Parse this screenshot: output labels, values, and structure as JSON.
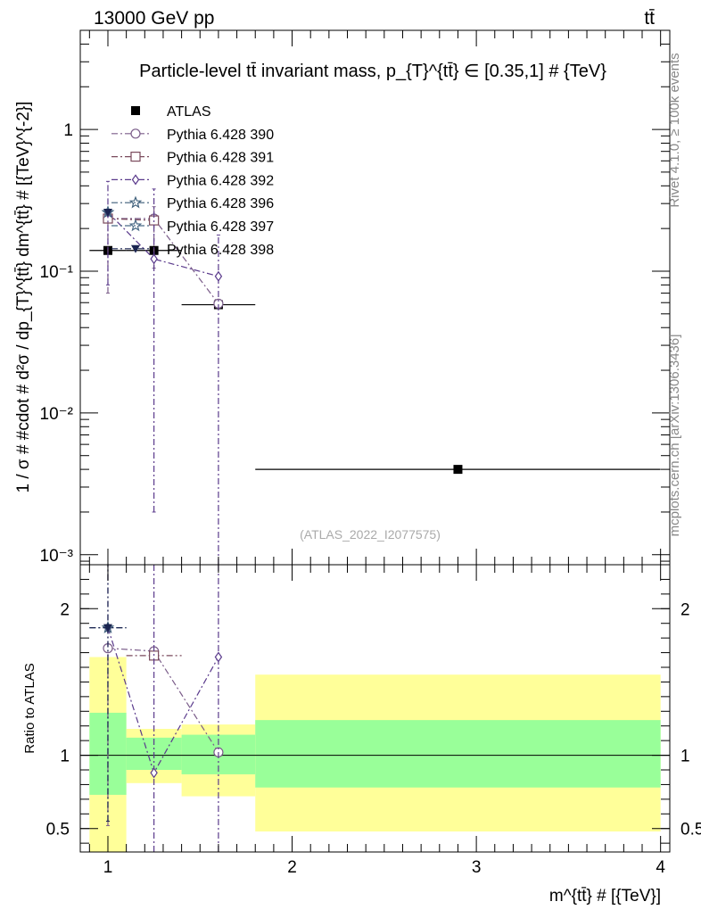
{
  "header": {
    "energy_label": "13000 GeV pp",
    "process_label": "tt̄"
  },
  "side": {
    "rivet_label": "Rivet 4.1.0, ≥ 100k events",
    "mcplots_label": "mcplots.cern.ch [arXiv:1306.3436]"
  },
  "chart_data": [
    {
      "type": "scatter",
      "panel": "main",
      "title": "Particle-level tt̄ invariant mass, p_{T}^{tt̄} ∈ [0.35,1] # {TeV}",
      "ylabel": "1 / σ # #cdot # d²σ / dp_{T}^{tt̄} dm^{tt̄} # [{TeV}^{-2}]",
      "watermark": "(ATLAS_2022_I2077575)",
      "xlim": [
        0.85,
        4.05
      ],
      "ylim": [
        0.00085,
        5.0
      ],
      "yscale": "log",
      "y_ticks": [
        {
          "value": 1,
          "label": "1"
        },
        {
          "value": 0.1,
          "label": "10⁻¹"
        },
        {
          "value": 0.01,
          "label": "10⁻²"
        },
        {
          "value": 0.001,
          "label": "10⁻³"
        }
      ],
      "legend_position": "top-left",
      "series": [
        {
          "name": "ATLAS",
          "color": "#000000",
          "marker": "square-filled",
          "line": "none",
          "points": [
            {
              "x": 1.0,
              "xerr": [
                0.1,
                0.1
              ],
              "y": 0.14,
              "yerr": [
                0.0,
                0.0
              ]
            },
            {
              "x": 1.25,
              "xerr": [
                0.15,
                0.15
              ],
              "y": 0.14,
              "yerr": [
                0.0,
                0.0
              ]
            },
            {
              "x": 1.6,
              "xerr": [
                0.2,
                0.2
              ],
              "y": 0.058,
              "yerr": [
                0.0,
                0.0
              ]
            },
            {
              "x": 2.9,
              "xerr": [
                1.1,
                1.1
              ],
              "y": 0.004,
              "yerr": [
                0.0,
                0.0
              ]
            }
          ]
        },
        {
          "name": "Pythia 6.428 390",
          "color": "#7b5d8a",
          "marker": "circle-open",
          "line": "dashdot",
          "points": [
            {
              "x": 1.0,
              "y": 0.235,
              "yerr": [
                0.165,
                0.0
              ]
            },
            {
              "x": 1.25,
              "y": 0.235,
              "yerr": [
                0.13,
                0.05
              ]
            },
            {
              "x": 1.6,
              "y": 0.059,
              "yerr": [
                0.0,
                0.0
              ]
            }
          ]
        },
        {
          "name": "Pythia 6.428 391",
          "color": "#7a4a5c",
          "marker": "square-open",
          "line": "dashdot",
          "points": [
            {
              "x": 1.0,
              "y": 0.235,
              "yerr": [
                0.0,
                0.0
              ]
            },
            {
              "x": 1.25,
              "y": 0.228,
              "yerr": [
                0.0,
                0.0
              ]
            }
          ]
        },
        {
          "name": "Pythia 6.428 392",
          "color": "#5a3a8c",
          "marker": "diamond-open",
          "line": "dashdot",
          "points": [
            {
              "x": 1.0,
              "y": 0.26,
              "yerr": [
                0.18,
                0.17
              ]
            },
            {
              "x": 1.25,
              "y": 0.122,
              "yerr": [
                0.12,
                0.258
              ]
            },
            {
              "x": 1.6,
              "y": 0.092,
              "yerr": [
                0.092,
                0.088
              ]
            }
          ]
        },
        {
          "name": "Pythia 6.428 396",
          "color": "#3e5f7a",
          "marker": "star-open",
          "line": "dashdot",
          "points": [
            {
              "x": 1.0,
              "y": 0.26,
              "yerr": [
                0.0,
                0.0
              ]
            }
          ]
        },
        {
          "name": "Pythia 6.428 397",
          "color": "#4a6a86",
          "marker": "star-open",
          "line": "dashdot",
          "points": [
            {
              "x": 1.0,
              "y": 0.26,
              "yerr": [
                0.0,
                0.0
              ]
            }
          ]
        },
        {
          "name": "Pythia 6.428 398",
          "color": "#1a2450",
          "marker": "triangle-down-filled",
          "line": "dashdot",
          "points": [
            {
              "x": 1.0,
              "y": 0.26,
              "yerr": [
                0.0,
                0.0
              ]
            }
          ]
        }
      ]
    },
    {
      "type": "scatter",
      "panel": "ratio",
      "ylabel": "Ratio to ATLAS",
      "xlabel": "m^{tt̄} # [{TeV}]",
      "xlim": [
        0.85,
        4.05
      ],
      "ylim": [
        0.34,
        2.3
      ],
      "y_ticks": [
        {
          "value": 0.5,
          "label": "0.5"
        },
        {
          "value": 1,
          "label": "1"
        },
        {
          "value": 2,
          "label": "2"
        }
      ],
      "x_ticks": [
        {
          "value": 1,
          "label": "1"
        },
        {
          "value": 2,
          "label": "2"
        },
        {
          "value": 3,
          "label": "3"
        },
        {
          "value": 4,
          "label": "4"
        }
      ],
      "uncertainty_bands": [
        {
          "x0": 0.9,
          "x1": 1.1,
          "inner": [
            0.73,
            1.29
          ],
          "outer": [
            0.34,
            1.67
          ]
        },
        {
          "x0": 1.1,
          "x1": 1.4,
          "inner": [
            0.9,
            1.12
          ],
          "outer": [
            0.81,
            1.18
          ]
        },
        {
          "x0": 1.4,
          "x1": 1.8,
          "inner": [
            0.87,
            1.14
          ],
          "outer": [
            0.72,
            1.21
          ]
        },
        {
          "x0": 1.8,
          "x1": 4.0,
          "inner": [
            0.78,
            1.24
          ],
          "outer": [
            0.48,
            1.55
          ]
        }
      ],
      "series": [
        {
          "name": "Pythia 6.428 390",
          "color": "#7b5d8a",
          "marker": "circle-open",
          "line": "dashdot",
          "points": [
            {
              "x": 1.0,
              "y": 1.73,
              "yerr": [
                1.21,
                0.0
              ]
            },
            {
              "x": 1.25,
              "y": 1.71,
              "yerr": [
                0.0,
                0.0
              ]
            },
            {
              "x": 1.6,
              "y": 1.02,
              "yerr": [
                0.0,
                0.0
              ]
            }
          ]
        },
        {
          "name": "Pythia 6.428 391",
          "color": "#7a4a5c",
          "marker": "square-open",
          "line": "dashdot",
          "points": [
            {
              "x": 1.25,
              "xerr": [
                0.15,
                0.15
              ],
              "y": 1.68,
              "yerr": [
                0.0,
                0.0
              ]
            }
          ]
        },
        {
          "name": "Pythia 6.428 392",
          "color": "#5a3a8c",
          "marker": "diamond-open",
          "line": "dashdot",
          "points": [
            {
              "x": 1.0,
              "y": 1.87,
              "yerr": [
                1.32,
                0.43
              ]
            },
            {
              "x": 1.25,
              "y": 0.88,
              "yerr": [
                0.54,
                1.42
              ]
            },
            {
              "x": 1.6,
              "y": 1.67,
              "yerr": [
                1.33,
                0.63
              ]
            }
          ]
        },
        {
          "name": "Pythia 6.428 396",
          "color": "#3e5f7a",
          "marker": "star-open",
          "line": "dashdot",
          "points": [
            {
              "x": 1.0,
              "xerr": [
                0.1,
                0.1
              ],
              "y": 1.87,
              "yerr": [
                0.0,
                0.0
              ]
            }
          ]
        },
        {
          "name": "Pythia 6.428 398",
          "color": "#1a2450",
          "marker": "triangle-down-filled",
          "line": "dashdot",
          "points": [
            {
              "x": 1.0,
              "xerr": [
                0.1,
                0.1
              ],
              "y": 1.87,
              "yerr": [
                1.32,
                0.43
              ]
            }
          ]
        }
      ]
    }
  ]
}
